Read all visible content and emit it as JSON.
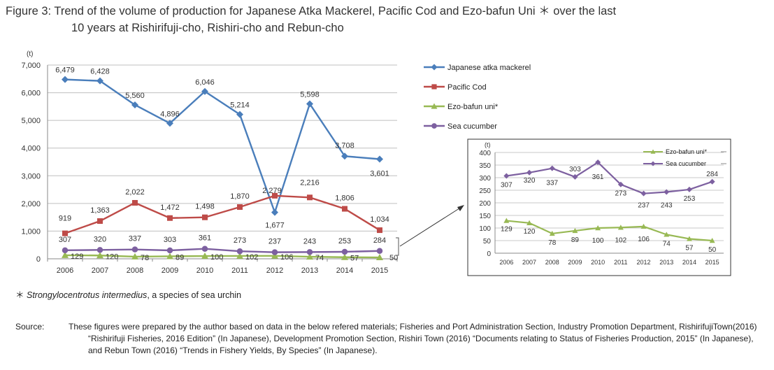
{
  "title": {
    "line1": "Figure 3: Trend of the volume of production for Japanese Atka Mackerel,  Pacific Cod and Ezo-bafun Uni ＊ over the last",
    "line2": "10 years at Rishirifuji-cho, Rishiri-cho and Rebun-cho"
  },
  "footnote": {
    "mark": "＊",
    "species": "Strongylocentrotus intermedius",
    "rest": ", a species of sea urchin"
  },
  "source": {
    "label": "Source:",
    "text": "These figures were prepared by the author based on data in the below refered materials; Fisheries and Port Administration Section, Industry Promotion Department, RishirifujiTown(2016) “Rishirifuji Fisheries, 2016 Edition” (In Japanese), Development Promotion Section, Rishiri Town (2016) “Documents relating to Status of Fisheries Production, 2015” (In Japanese), and Rebun Town (2016) “Trends in Fishery Yields, By Species” (In Japanese)."
  },
  "chart_data": [
    {
      "type": "line",
      "unit_label": "(t)",
      "x": [
        "2006",
        "2007",
        "2008",
        "2009",
        "2010",
        "2011",
        "2012",
        "2013",
        "2014",
        "2015"
      ],
      "ylim": [
        0,
        7000
      ],
      "yticks": [
        "0",
        "1,000",
        "2,000",
        "3,000",
        "4,000",
        "5,000",
        "6,000",
        "7,000"
      ],
      "grid": true,
      "legend": "right",
      "series": [
        {
          "name": "Japanese atka mackerel",
          "color": "#4a7ebb",
          "marker": "diamond",
          "values": [
            6479,
            6428,
            5560,
            4896,
            6046,
            5214,
            1677,
            5598,
            3708,
            3601
          ],
          "labels": [
            "6,479",
            "6,428",
            "5,560",
            "4,896",
            "6,046",
            "5,214",
            "1,677",
            "5,598",
            "3,708",
            "3,601"
          ]
        },
        {
          "name": "Pacific Cod",
          "color": "#be4b48",
          "marker": "square",
          "values": [
            919,
            1363,
            2022,
            1472,
            1498,
            1870,
            2279,
            2216,
            1806,
            1034
          ],
          "labels": [
            "919",
            "1,363",
            "2,022",
            "1,472",
            "1,498",
            "1,870",
            "2,279",
            "2,216",
            "1,806",
            "1,034"
          ]
        },
        {
          "name": "Ezo-bafun uni*",
          "color": "#98b954",
          "marker": "triangle",
          "values": [
            129,
            120,
            78,
            89,
            100,
            102,
            106,
            74,
            57,
            50
          ],
          "labels": [
            "129",
            "120",
            "78",
            "89",
            "100",
            "102",
            "106",
            "74",
            "57",
            "50"
          ]
        },
        {
          "name": "Sea cucumber",
          "color": "#7d60a0",
          "marker": "circle",
          "values": [
            307,
            320,
            337,
            303,
            361,
            273,
            237,
            243,
            253,
            284
          ],
          "labels": [
            "307",
            "320",
            "337",
            "303",
            "361",
            "273",
            "237",
            "243",
            "253",
            "284"
          ]
        }
      ]
    },
    {
      "type": "line",
      "unit_label": "(t)",
      "x": [
        "2006",
        "2007",
        "2008",
        "2009",
        "2010",
        "2011",
        "2012",
        "2013",
        "2014",
        "2015"
      ],
      "ylim": [
        0,
        400
      ],
      "yticks": [
        "0",
        "50",
        "100",
        "150",
        "200",
        "250",
        "300",
        "350",
        "400"
      ],
      "grid": true,
      "legend": "top-right",
      "series": [
        {
          "name": "Ezo-bafun uni*",
          "color": "#98b954",
          "marker": "triangle",
          "values": [
            129,
            120,
            78,
            89,
            100,
            102,
            106,
            74,
            57,
            50
          ],
          "labels": [
            "129",
            "120",
            "78",
            "89",
            "100",
            "102",
            "106",
            "74",
            "57",
            "50"
          ]
        },
        {
          "name": "Sea cucumber",
          "color": "#7d60a0",
          "marker": "diamond",
          "values": [
            307,
            320,
            337,
            303,
            361,
            273,
            237,
            243,
            253,
            284
          ],
          "labels": [
            "307",
            "320",
            "337",
            "303",
            "361",
            "273",
            "237",
            "243",
            "253",
            "284"
          ]
        }
      ]
    }
  ]
}
